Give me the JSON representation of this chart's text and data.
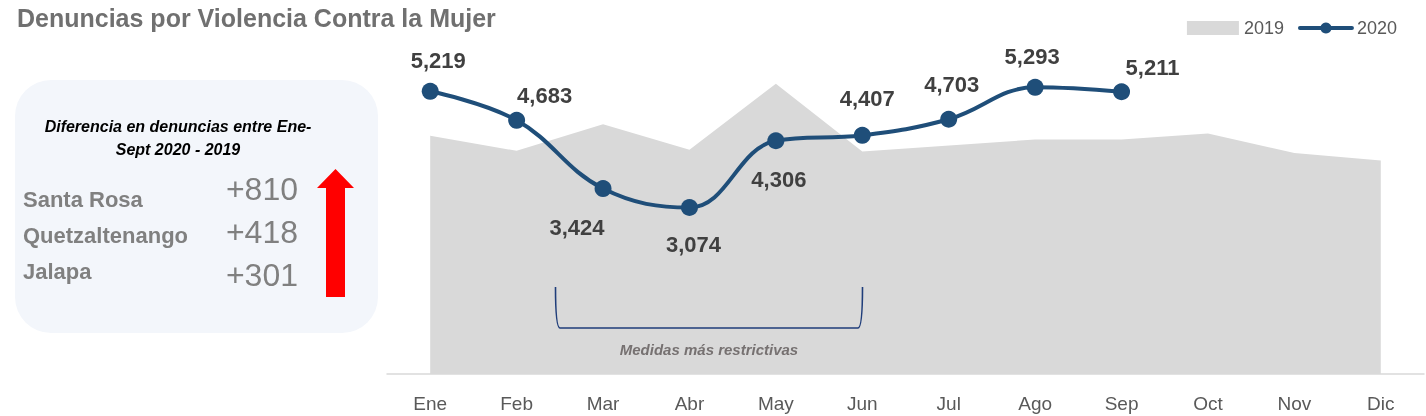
{
  "chart_data": [
    {
      "type": "line",
      "title": "Denuncias por Violencia Contra la Mujer",
      "categories": [
        "Ene",
        "Feb",
        "Mar",
        "Abr",
        "May",
        "Jun",
        "Jul",
        "Ago",
        "Sep",
        "Oct",
        "Nov",
        "Dic"
      ],
      "series": [
        {
          "name": "2019",
          "type": "area",
          "color": "#d9d9d9",
          "values": [
            4400,
            4120,
            4610,
            4140,
            5360,
            4110,
            null,
            4330,
            4330,
            4440,
            4080,
            3940
          ]
        },
        {
          "name": "2020",
          "type": "line",
          "color": "#1f4e79",
          "marker": "circle",
          "values": [
            5219,
            4683,
            3424,
            3074,
            4306,
            4407,
            4703,
            5293,
            5211,
            null,
            null,
            null
          ],
          "value_labels": [
            "5,219",
            "4,683",
            "3,424",
            "3,074",
            "4,306",
            "4,407",
            "4,703",
            "5,293",
            "5,211",
            null,
            null,
            null
          ]
        }
      ],
      "legend": "top right",
      "tick_labels": "x",
      "annotations": [
        "Medidas más restrictivas"
      ]
    },
    {
      "type": "other",
      "title": "Diferencia en denuncias entre Ene-Sept 2020 - 2019",
      "annotations": [
        "Santa Rosa",
        "+810",
        "Quetzaltenango",
        "+418",
        "Jalapa",
        "+301"
      ]
    }
  ]
}
